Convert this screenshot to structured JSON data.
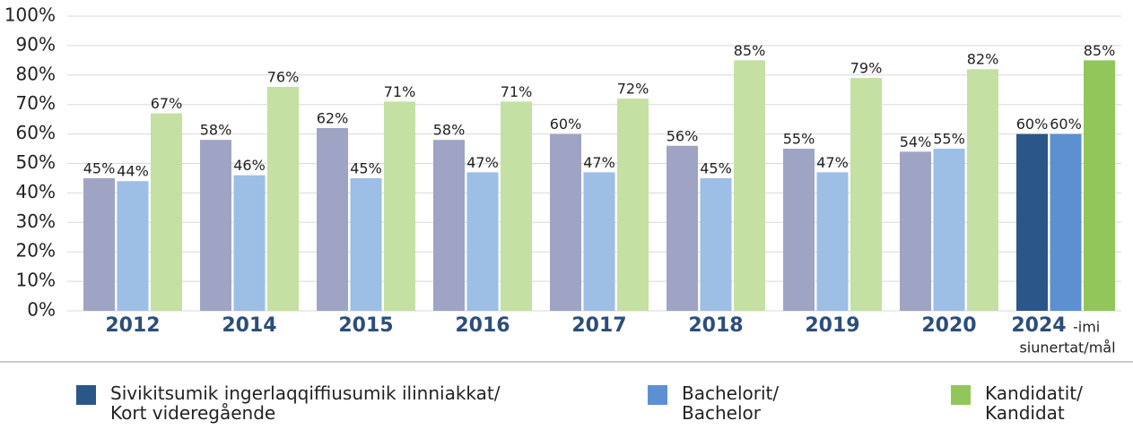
{
  "chart_data": {
    "type": "bar",
    "categories": [
      "2012",
      "2014",
      "2015",
      "2016",
      "2017",
      "2018",
      "2019",
      "2020",
      "2024"
    ],
    "target_category": "2024",
    "annotations": [
      "-imi",
      "siunertat/mål"
    ],
    "series": [
      {
        "name": "Sivikitsumik ingerlaqqiffiusumik ilinniakkat/\nKort videregående",
        "color": "#2b5689",
        "faded_color": "#9fa4c4",
        "values": [
          45,
          58,
          62,
          58,
          60,
          56,
          55,
          54,
          60
        ],
        "value_labels": [
          "45%",
          "58%",
          "62%",
          "58%",
          "60%",
          "56%",
          "55%",
          "54%",
          "60%"
        ]
      },
      {
        "name": "Bachelorit/\nBachelor",
        "color": "#5d90d0",
        "faded_color": "#9dbee5",
        "values": [
          44,
          46,
          45,
          47,
          47,
          45,
          47,
          55,
          60
        ],
        "value_labels": [
          "44%",
          "46%",
          "45%",
          "47%",
          "47%",
          "45%",
          "47%",
          "55%",
          "60%"
        ]
      },
      {
        "name": "Kandidatit/\nKandidat",
        "color": "#92c65a",
        "faded_color": "#c4e0a2",
        "values": [
          67,
          76,
          71,
          71,
          72,
          85,
          79,
          82,
          85
        ],
        "value_labels": [
          "67%",
          "76%",
          "71%",
          "71%",
          "72%",
          "85%",
          "79%",
          "82%",
          "85%"
        ]
      }
    ],
    "ylim": [
      0,
      100
    ],
    "yticks": [
      {
        "value": 0,
        "label": "0%"
      },
      {
        "value": 10,
        "label": "10%"
      },
      {
        "value": 20,
        "label": "20%"
      },
      {
        "value": 30,
        "label": "30%"
      },
      {
        "value": 40,
        "label": "40%"
      },
      {
        "value": 50,
        "label": "50%"
      },
      {
        "value": 60,
        "label": "60%"
      },
      {
        "value": 70,
        "label": "70%"
      },
      {
        "value": 80,
        "label": "80%"
      },
      {
        "value": 90,
        "label": "90%"
      },
      {
        "value": 100,
        "label": "100%"
      }
    ],
    "grid": true
  }
}
